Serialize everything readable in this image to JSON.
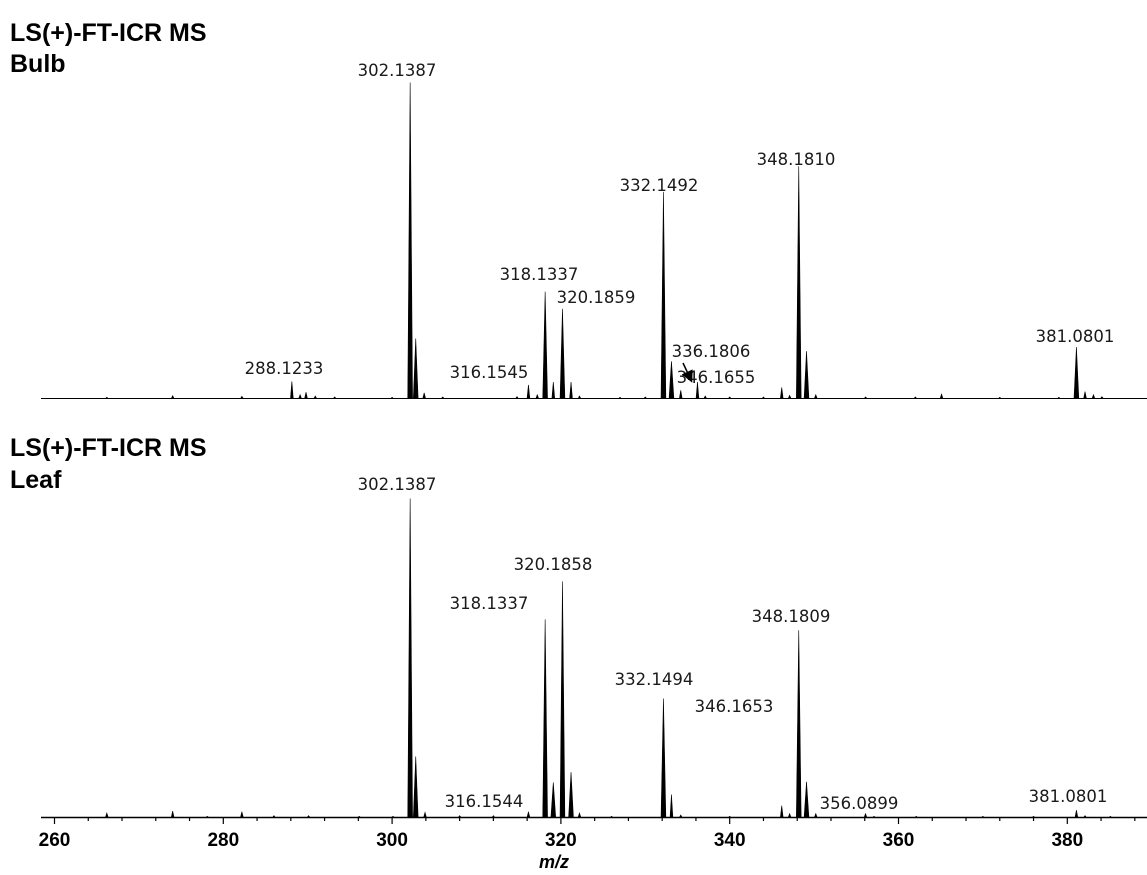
{
  "chart_data": [
    {
      "type": "line",
      "title": "LS(+)-FT-ICR MS",
      "subtitle": "Bulb",
      "xlim": [
        259,
        389
      ],
      "ylim": [
        0,
        1.0
      ],
      "peaks": [
        {
          "x": 258.2,
          "y": 0.004
        },
        {
          "x": 266.2,
          "y": 0.004
        },
        {
          "x": 274.0,
          "y": 0.009
        },
        {
          "x": 282.2,
          "y": 0.007
        },
        {
          "x": 288.1233,
          "y": 0.054,
          "label": "288.1233"
        },
        {
          "x": 289.1,
          "y": 0.012
        },
        {
          "x": 289.8,
          "y": 0.02
        },
        {
          "x": 290.9,
          "y": 0.008
        },
        {
          "x": 293.2,
          "y": 0.005
        },
        {
          "x": 300.0,
          "y": 0.004
        },
        {
          "x": 302.1387,
          "y": 1.0,
          "label": "302.1387"
        },
        {
          "x": 302.8,
          "y": 0.19
        },
        {
          "x": 303.8,
          "y": 0.018
        },
        {
          "x": 306.0,
          "y": 0.005
        },
        {
          "x": 314.8,
          "y": 0.006
        },
        {
          "x": 316.1545,
          "y": 0.043,
          "label": "316.1545"
        },
        {
          "x": 317.2,
          "y": 0.012
        },
        {
          "x": 318.1337,
          "y": 0.338,
          "label": "318.1337"
        },
        {
          "x": 319.1,
          "y": 0.052
        },
        {
          "x": 320.1859,
          "y": 0.284,
          "label": "320.1859"
        },
        {
          "x": 321.2,
          "y": 0.052
        },
        {
          "x": 322.2,
          "y": 0.008
        },
        {
          "x": 327.0,
          "y": 0.004
        },
        {
          "x": 330.0,
          "y": 0.005
        },
        {
          "x": 332.1492,
          "y": 0.654,
          "label": "332.1492"
        },
        {
          "x": 333.1,
          "y": 0.118
        },
        {
          "x": 334.2,
          "y": 0.026
        },
        {
          "x": 336.1806,
          "y": 0.052,
          "label": "336.1806"
        },
        {
          "x": 337.1,
          "y": 0.008
        },
        {
          "x": 340.0,
          "y": 0.005
        },
        {
          "x": 344.0,
          "y": 0.005
        },
        {
          "x": 346.1655,
          "y": 0.035,
          "label": "346.1655"
        },
        {
          "x": 347.1,
          "y": 0.01
        },
        {
          "x": 348.181,
          "y": 0.735,
          "label": "348.1810"
        },
        {
          "x": 349.1,
          "y": 0.15
        },
        {
          "x": 350.2,
          "y": 0.012
        },
        {
          "x": 356.1,
          "y": 0.005
        },
        {
          "x": 362.0,
          "y": 0.005
        },
        {
          "x": 365.1,
          "y": 0.014
        },
        {
          "x": 372.0,
          "y": 0.004
        },
        {
          "x": 379.0,
          "y": 0.004
        },
        {
          "x": 381.0801,
          "y": 0.163,
          "label": "381.0801"
        },
        {
          "x": 382.1,
          "y": 0.022
        },
        {
          "x": 383.1,
          "y": 0.012
        },
        {
          "x": 384.1,
          "y": 0.006
        }
      ]
    },
    {
      "type": "line",
      "title": "LS(+)-FT-ICR MS",
      "subtitle": "Leaf",
      "xlim": [
        259,
        389
      ],
      "ylim": [
        0,
        1.0
      ],
      "x_ticks": [
        260,
        280,
        300,
        320,
        340,
        360,
        380
      ],
      "xlabel": "m/z",
      "peaks": [
        {
          "x": 266.2,
          "y": 0.014
        },
        {
          "x": 274.0,
          "y": 0.02
        },
        {
          "x": 278.1,
          "y": 0.004
        },
        {
          "x": 282.2,
          "y": 0.018
        },
        {
          "x": 286.0,
          "y": 0.006
        },
        {
          "x": 290.1,
          "y": 0.006
        },
        {
          "x": 296.1,
          "y": 0.004
        },
        {
          "x": 300.1,
          "y": 0.004
        },
        {
          "x": 302.1387,
          "y": 1.0,
          "label": "302.1387"
        },
        {
          "x": 302.8,
          "y": 0.191
        },
        {
          "x": 303.9,
          "y": 0.016
        },
        {
          "x": 308.0,
          "y": 0.006
        },
        {
          "x": 312.0,
          "y": 0.006
        },
        {
          "x": 316.1544,
          "y": 0.018,
          "label": "316.1544"
        },
        {
          "x": 318.1337,
          "y": 0.621,
          "label": "318.1337"
        },
        {
          "x": 319.1,
          "y": 0.11
        },
        {
          "x": 320.1858,
          "y": 0.74,
          "label": "320.1858"
        },
        {
          "x": 321.2,
          "y": 0.142
        },
        {
          "x": 322.2,
          "y": 0.014
        },
        {
          "x": 326.0,
          "y": 0.004
        },
        {
          "x": 332.1494,
          "y": 0.373,
          "label": "332.1494"
        },
        {
          "x": 333.1,
          "y": 0.072
        },
        {
          "x": 334.2,
          "y": 0.008
        },
        {
          "x": 340.0,
          "y": 0.004
        },
        {
          "x": 346.1653,
          "y": 0.037,
          "label": "346.1653"
        },
        {
          "x": 347.1,
          "y": 0.012
        },
        {
          "x": 348.1809,
          "y": 0.587,
          "label": "348.1809"
        },
        {
          "x": 349.1,
          "y": 0.112
        },
        {
          "x": 350.2,
          "y": 0.012
        },
        {
          "x": 356.0899,
          "y": 0.012,
          "label": "356.0899"
        },
        {
          "x": 357.1,
          "y": 0.004
        },
        {
          "x": 362.1,
          "y": 0.004
        },
        {
          "x": 370.0,
          "y": 0.004
        },
        {
          "x": 376.0,
          "y": 0.004
        },
        {
          "x": 381.0801,
          "y": 0.023,
          "label": "381.0801"
        },
        {
          "x": 382.1,
          "y": 0.006
        },
        {
          "x": 385.1,
          "y": 0.004
        }
      ]
    }
  ],
  "colors": {
    "trace": "#000000",
    "text": "#1a1a1a"
  }
}
